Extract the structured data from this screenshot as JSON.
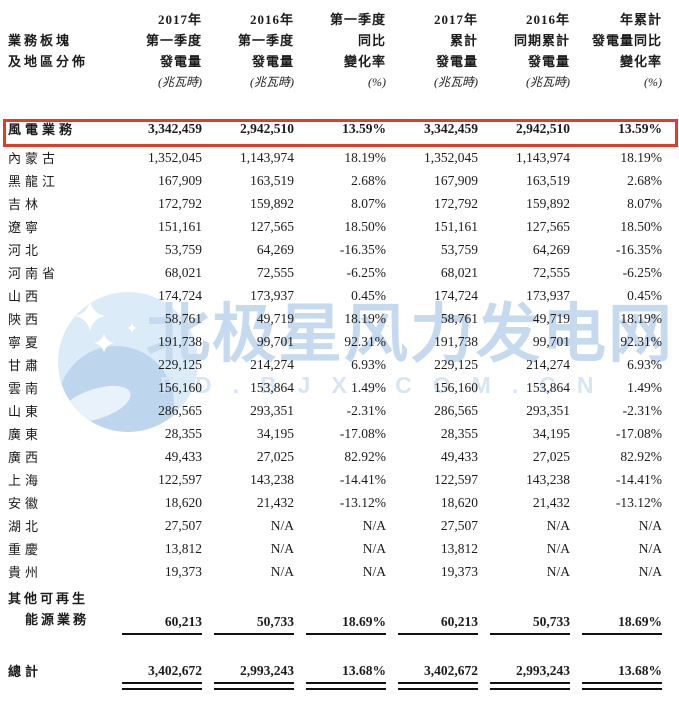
{
  "watermark": {
    "brand_text": "北极星风力发电网",
    "domain_text": "FD.BJX.COM.CN",
    "brand_color": "#c6daef",
    "domain_color": "#d7e5f4",
    "circle_color": "#dcebf8",
    "crescent_color": "#bdd5ed",
    "leaf_color": "#e9f2fa",
    "logo_name": "polaris-star-circle"
  },
  "highlight": {
    "box_color": "#e23b28"
  },
  "table": {
    "columns": [
      {
        "lines": [
          "業務板塊",
          "及地區分佈"
        ],
        "unit": ""
      },
      {
        "lines": [
          "2017年",
          "第一季度",
          "發電量"
        ],
        "unit": "(兆瓦時)"
      },
      {
        "lines": [
          "2016年",
          "第一季度",
          "發電量"
        ],
        "unit": "(兆瓦時)"
      },
      {
        "lines": [
          "第一季度",
          "同比",
          "變化率"
        ],
        "unit": "(%)"
      },
      {
        "lines": [
          "2017年",
          "累計",
          "發電量"
        ],
        "unit": "(兆瓦時)"
      },
      {
        "lines": [
          "2016年",
          "同期累計",
          "發電量"
        ],
        "unit": "(兆瓦時)"
      },
      {
        "lines": [
          "年累計",
          "發電量同比",
          "變化率"
        ],
        "unit": "(%)"
      }
    ],
    "rows": [
      {
        "type": "highlight",
        "label": "風電業務",
        "values": [
          "3,342,459",
          "2,942,510",
          "13.59%",
          "3,342,459",
          "2,942,510",
          "13.59%"
        ]
      },
      {
        "type": "region",
        "label": "內蒙古",
        "values": [
          "1,352,045",
          "1,143,974",
          "18.19%",
          "1,352,045",
          "1,143,974",
          "18.19%"
        ]
      },
      {
        "type": "region",
        "label": "黑龍江",
        "values": [
          "167,909",
          "163,519",
          "2.68%",
          "167,909",
          "163,519",
          "2.68%"
        ]
      },
      {
        "type": "region",
        "label": "吉林",
        "values": [
          "172,792",
          "159,892",
          "8.07%",
          "172,792",
          "159,892",
          "8.07%"
        ]
      },
      {
        "type": "region",
        "label": "遼寧",
        "values": [
          "151,161",
          "127,565",
          "18.50%",
          "151,161",
          "127,565",
          "18.50%"
        ]
      },
      {
        "type": "region",
        "label": "河北",
        "values": [
          "53,759",
          "64,269",
          "-16.35%",
          "53,759",
          "64,269",
          "-16.35%"
        ]
      },
      {
        "type": "region",
        "label": "河南省",
        "values": [
          "68,021",
          "72,555",
          "-6.25%",
          "68,021",
          "72,555",
          "-6.25%"
        ]
      },
      {
        "type": "region",
        "label": "山西",
        "values": [
          "174,724",
          "173,937",
          "0.45%",
          "174,724",
          "173,937",
          "0.45%"
        ]
      },
      {
        "type": "region",
        "label": "陝西",
        "values": [
          "58,761",
          "49,719",
          "18.19%",
          "58,761",
          "49,719",
          "18.19%"
        ]
      },
      {
        "type": "region",
        "label": "寧夏",
        "values": [
          "191,738",
          "99,701",
          "92.31%",
          "191,738",
          "99,701",
          "92.31%"
        ]
      },
      {
        "type": "region",
        "label": "甘肅",
        "values": [
          "229,125",
          "214,274",
          "6.93%",
          "229,125",
          "214,274",
          "6.93%"
        ]
      },
      {
        "type": "region",
        "label": "雲南",
        "values": [
          "156,160",
          "153,864",
          "1.49%",
          "156,160",
          "153,864",
          "1.49%"
        ]
      },
      {
        "type": "region",
        "label": "山東",
        "values": [
          "286,565",
          "293,351",
          "-2.31%",
          "286,565",
          "293,351",
          "-2.31%"
        ]
      },
      {
        "type": "region",
        "label": "廣東",
        "values": [
          "28,355",
          "34,195",
          "-17.08%",
          "28,355",
          "34,195",
          "-17.08%"
        ]
      },
      {
        "type": "region",
        "label": "廣西",
        "values": [
          "49,433",
          "27,025",
          "82.92%",
          "49,433",
          "27,025",
          "82.92%"
        ]
      },
      {
        "type": "region",
        "label": "上海",
        "values": [
          "122,597",
          "143,238",
          "-14.41%",
          "122,597",
          "143,238",
          "-14.41%"
        ]
      },
      {
        "type": "region",
        "label": "安徽",
        "values": [
          "18,620",
          "21,432",
          "-13.12%",
          "18,620",
          "21,432",
          "-13.12%"
        ]
      },
      {
        "type": "region",
        "label": "湖北",
        "values": [
          "27,507",
          "N/A",
          "N/A",
          "27,507",
          "N/A",
          "N/A"
        ]
      },
      {
        "type": "region",
        "label": "重慶",
        "values": [
          "13,812",
          "N/A",
          "N/A",
          "13,812",
          "N/A",
          "N/A"
        ]
      },
      {
        "type": "region",
        "label": "貴州",
        "values": [
          "19,373",
          "N/A",
          "N/A",
          "19,373",
          "N/A",
          "N/A"
        ]
      },
      {
        "type": "other",
        "label_lines": [
          "其他可再生",
          "能源業務"
        ],
        "values": [
          "60,213",
          "50,733",
          "18.69%",
          "60,213",
          "50,733",
          "18.69%"
        ]
      },
      {
        "type": "total",
        "label": "總計",
        "values": [
          "3,402,672",
          "2,993,243",
          "13.68%",
          "3,402,672",
          "2,993,243",
          "13.68%"
        ]
      }
    ]
  }
}
